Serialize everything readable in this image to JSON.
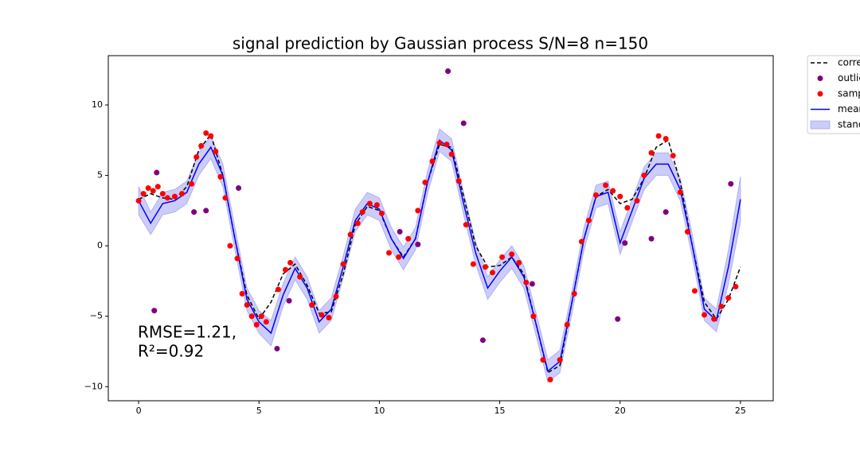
{
  "chart_data": {
    "type": "line",
    "title": "signal prediction by Gaussian process S/N=8 n=150",
    "annotations": [
      "RMSE=1.21,",
      "R²=0.92"
    ],
    "xlim": [
      -1.26,
      26.36
    ],
    "ylim": [
      -11.0,
      13.5
    ],
    "xticks": [
      0,
      5,
      10,
      15,
      20,
      25
    ],
    "yticks": [
      {
        "value": -10,
        "label": "−10"
      },
      {
        "value": -5,
        "label": "−5"
      },
      0,
      5,
      10
    ],
    "x": [
      0,
      0.5,
      1,
      1.5,
      2,
      2.5,
      3,
      3.5,
      4,
      4.5,
      5,
      5.5,
      6,
      6.5,
      7,
      7.5,
      8,
      8.5,
      9,
      9.5,
      10,
      10.5,
      11,
      11.5,
      12,
      12.5,
      13,
      13.5,
      14,
      14.5,
      15,
      15.5,
      16,
      16.5,
      17,
      17.5,
      18,
      18.5,
      19,
      19.5,
      20,
      20.5,
      21,
      21.5,
      22,
      22.5,
      23,
      23.5,
      24,
      24.5,
      25
    ],
    "series": [
      {
        "name": "corre",
        "color": "#000000",
        "dashed": true,
        "values": [
          3.3,
          3.7,
          3.4,
          3.3,
          4.2,
          6.8,
          7.9,
          5.0,
          0.5,
          -3.5,
          -5.2,
          -4.0,
          -2.0,
          -1.3,
          -2.8,
          -4.8,
          -4.7,
          -2.0,
          1.5,
          2.8,
          2.5,
          0.5,
          -0.8,
          0.5,
          4.5,
          7.2,
          7.0,
          3.5,
          0,
          -1.5,
          -1.4,
          -0.8,
          -2.0,
          -5.5,
          -9.0,
          -8.5,
          -4.0,
          0.5,
          3.5,
          4.0,
          3.0,
          3.3,
          4.8,
          7.0,
          7.5,
          4.5,
          0,
          -4.0,
          -5.2,
          -3.8,
          -1.5
        ]
      },
      {
        "name": "mean",
        "color": "#0000ff",
        "dashed": false,
        "values": [
          3.2,
          1.6,
          3.0,
          3.2,
          3.8,
          5.8,
          7.0,
          5.0,
          0.5,
          -3.8,
          -5.4,
          -6.2,
          -3.5,
          -1.6,
          -3.0,
          -5.4,
          -4.5,
          -1.5,
          1.8,
          3.0,
          2.6,
          0.5,
          -0.9,
          0.5,
          4.5,
          7.5,
          6.8,
          3.0,
          -0.5,
          -3.0,
          -1.8,
          -0.8,
          -2.2,
          -5.5,
          -8.9,
          -8.2,
          -4.0,
          0.5,
          3.5,
          3.8,
          0.2,
          2.5,
          4.8,
          5.8,
          5.8,
          4.0,
          0,
          -4.5,
          -5.3,
          -1.5,
          3.3
        ]
      }
    ],
    "band": {
      "name": "stand",
      "color": "#8080f0",
      "upper": [
        4.2,
        2.4,
        3.8,
        4.0,
        4.6,
        6.6,
        7.8,
        5.8,
        1.3,
        -3.0,
        -4.6,
        -5.3,
        -2.7,
        -0.8,
        -2.2,
        -4.6,
        -3.7,
        -0.7,
        2.6,
        3.8,
        3.4,
        1.3,
        -0.1,
        1.3,
        5.3,
        8.3,
        7.6,
        3.8,
        0.3,
        -2.2,
        -1.0,
        0,
        -1.4,
        -4.7,
        -8.1,
        -7.4,
        -3.2,
        1.3,
        4.3,
        4.6,
        1.0,
        3.3,
        5.6,
        6.6,
        6.6,
        4.8,
        0.8,
        -3.7,
        -4.5,
        -0.3,
        4.9
      ],
      "lower": [
        2.2,
        0.8,
        2.2,
        2.4,
        3.0,
        5.0,
        6.2,
        4.2,
        -0.3,
        -4.6,
        -6.2,
        -7.1,
        -4.3,
        -2.4,
        -3.8,
        -6.2,
        -5.3,
        -2.3,
        1.0,
        2.2,
        1.8,
        -0.3,
        -1.7,
        -0.3,
        3.7,
        6.7,
        6.0,
        2.2,
        -1.3,
        -3.8,
        -2.6,
        -1.6,
        -3.0,
        -6.3,
        -9.7,
        -9.0,
        -4.8,
        -0.3,
        2.7,
        3.0,
        -0.6,
        1.7,
        4.0,
        5.0,
        5.0,
        3.2,
        -0.8,
        -5.3,
        -6.1,
        -2.7,
        1.7
      ]
    },
    "points": [
      {
        "name": "outlie",
        "color": "#800080",
        "x": [
          0.75,
          0.65,
          2.3,
          2.8,
          4.15,
          5.75,
          6.25,
          10.85,
          11.6,
          12.85,
          13.5,
          14.3,
          16.35,
          19.9,
          20.2,
          21.3,
          21.9,
          24.6
        ],
        "y": [
          5.2,
          -4.6,
          2.4,
          2.5,
          4.1,
          -7.3,
          -3.9,
          1.0,
          0.1,
          12.4,
          8.7,
          -6.7,
          -2.7,
          -5.2,
          0.2,
          0.5,
          2.4,
          4.4
        ]
      },
      {
        "name": "samp",
        "color": "#ff0000",
        "x": [
          0,
          0.2,
          0.4,
          0.6,
          0.8,
          1,
          1.2,
          1.5,
          1.8,
          2.2,
          2.4,
          2.6,
          2.8,
          3,
          3.2,
          3.4,
          3.6,
          3.8,
          4.1,
          4.3,
          4.5,
          4.7,
          4.9,
          5.1,
          5.3,
          5.8,
          6.1,
          6.3,
          6.7,
          7.2,
          7.6,
          7.9,
          8.2,
          8.5,
          8.8,
          9.1,
          9.3,
          9.6,
          9.9,
          10.1,
          10.4,
          10.8,
          11.2,
          11.6,
          11.9,
          12.2,
          12.5,
          12.8,
          13,
          13.3,
          13.6,
          13.9,
          14.4,
          14.7,
          15.1,
          15.5,
          15.8,
          16.1,
          16.4,
          16.8,
          17.1,
          17.5,
          17.8,
          18.1,
          18.4,
          18.7,
          19,
          19.4,
          19.7,
          20,
          20.3,
          20.7,
          21,
          21.3,
          21.6,
          21.9,
          22.2,
          22.5,
          22.8,
          23.1,
          23.5,
          23.9,
          24.2,
          24.5,
          24.8
        ],
        "y": [
          3.2,
          3.7,
          4.1,
          3.9,
          4.2,
          3.7,
          3.4,
          3.5,
          3.7,
          4.4,
          6.3,
          7.1,
          8.0,
          7.8,
          6.7,
          4.9,
          3.4,
          0,
          -0.9,
          -3.4,
          -4.2,
          -5.0,
          -5.6,
          -5.0,
          -5.4,
          -3.1,
          -1.7,
          -1.2,
          -2.2,
          -4.2,
          -4.9,
          -5.1,
          -3.6,
          -1.3,
          0.8,
          1.6,
          2.4,
          3.0,
          2.9,
          2.3,
          -0.5,
          -0.8,
          0.5,
          2.5,
          4.5,
          6.0,
          7.3,
          7.2,
          6.5,
          4.6,
          1.5,
          -1.3,
          -1.5,
          -1.9,
          -0.8,
          -0.6,
          -1.2,
          -2.6,
          -5.0,
          -8.1,
          -9.5,
          -8.1,
          -5.6,
          -3.4,
          0.3,
          1.8,
          3.6,
          4.3,
          3.9,
          3.5,
          2.7,
          3.2,
          5.0,
          6.6,
          7.8,
          7.6,
          6.4,
          3.8,
          1.0,
          -3.2,
          -4.9,
          -5.2,
          -4.3,
          -3.7,
          -2.9
        ]
      }
    ]
  }
}
